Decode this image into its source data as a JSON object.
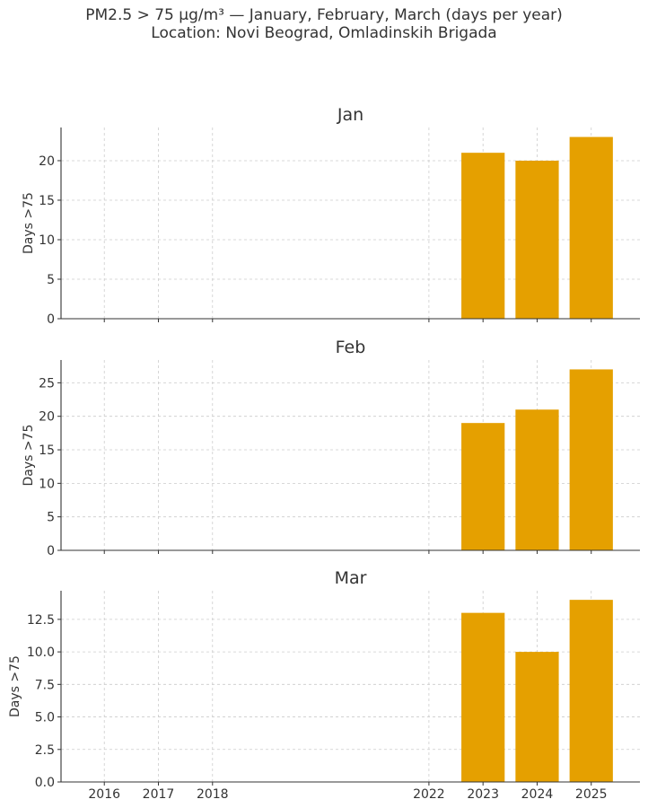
{
  "figure": {
    "title_line1": "PM2.5 > 75 µg/m³ — January, February, March (days per year)",
    "title_line2": "Location: Novi Beograd, Omladinskih Brigada"
  },
  "chart_data": [
    {
      "type": "bar",
      "title": "Jan",
      "ylabel": "Days >75",
      "x": [
        2016,
        2017,
        2018,
        2022,
        2023,
        2024,
        2025
      ],
      "values": [
        0,
        0,
        0,
        0,
        21,
        20,
        23
      ],
      "xlim": [
        2015.2,
        2025.9
      ],
      "ylim": [
        0,
        24.2
      ],
      "yticks": [
        0,
        5,
        10,
        15,
        20
      ],
      "ytick_labels": [
        "0",
        "5",
        "10",
        "15",
        "20"
      ],
      "color": "#e5a000",
      "grid": true
    },
    {
      "type": "bar",
      "title": "Feb",
      "ylabel": "Days >75",
      "x": [
        2016,
        2017,
        2018,
        2022,
        2023,
        2024,
        2025
      ],
      "values": [
        0,
        0,
        0,
        0,
        19,
        21,
        27
      ],
      "xlim": [
        2015.2,
        2025.9
      ],
      "ylim": [
        0,
        28.4
      ],
      "yticks": [
        0,
        5,
        10,
        15,
        20,
        25
      ],
      "ytick_labels": [
        "0",
        "5",
        "10",
        "15",
        "20",
        "25"
      ],
      "color": "#e5a000",
      "grid": true
    },
    {
      "type": "bar",
      "title": "Mar",
      "ylabel": "Days >75",
      "x": [
        2016,
        2017,
        2018,
        2022,
        2023,
        2024,
        2025
      ],
      "values": [
        0,
        0,
        0,
        0,
        13,
        10,
        14
      ],
      "xlim": [
        2015.2,
        2025.9
      ],
      "ylim": [
        0,
        14.7
      ],
      "yticks": [
        0,
        2.5,
        5,
        7.5,
        10,
        12.5
      ],
      "ytick_labels": [
        "0.0",
        "2.5",
        "5.0",
        "7.5",
        "10.0",
        "12.5"
      ],
      "xtick_labels": [
        "2016",
        "2017",
        "2018",
        "2022",
        "2023",
        "2024",
        "2025"
      ],
      "color": "#e5a000",
      "grid": true
    }
  ]
}
